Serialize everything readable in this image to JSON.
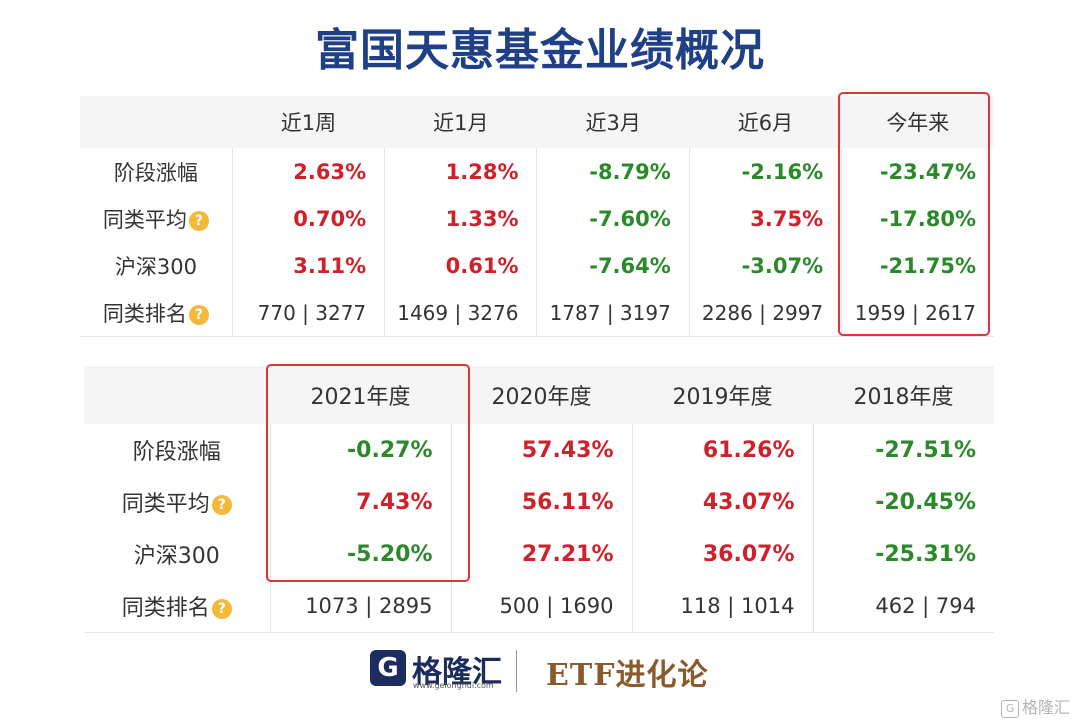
{
  "title": "富国天惠基金业绩概况",
  "table1": {
    "headers": [
      "",
      "近1周",
      "近1月",
      "近3月",
      "近6月",
      "今年来"
    ],
    "rows": [
      {
        "label": "阶段涨幅",
        "info": false,
        "values": [
          "2.63%",
          "1.28%",
          "-8.79%",
          "-2.16%",
          "-23.47%"
        ]
      },
      {
        "label": "同类平均",
        "info": true,
        "values": [
          "0.70%",
          "1.33%",
          "-7.60%",
          "3.75%",
          "-17.80%"
        ]
      },
      {
        "label": "沪深300",
        "info": false,
        "values": [
          "3.11%",
          "0.61%",
          "-7.64%",
          "-3.07%",
          "-21.75%"
        ]
      },
      {
        "label": "同类排名",
        "info": true,
        "values": [
          "770 | 3277",
          "1469 | 3276",
          "1787 | 3197",
          "2286 | 2997",
          "1959 | 2617"
        ]
      }
    ],
    "highlighted_column": "今年来"
  },
  "table2": {
    "headers": [
      "",
      "2021年度",
      "2020年度",
      "2019年度",
      "2018年度"
    ],
    "rows": [
      {
        "label": "阶段涨幅",
        "info": false,
        "values": [
          "-0.27%",
          "57.43%",
          "61.26%",
          "-27.51%"
        ]
      },
      {
        "label": "同类平均",
        "info": true,
        "values": [
          "7.43%",
          "56.11%",
          "43.07%",
          "-20.45%"
        ]
      },
      {
        "label": "沪深300",
        "info": false,
        "values": [
          "-5.20%",
          "27.21%",
          "36.07%",
          "-25.31%"
        ]
      },
      {
        "label": "同类排名",
        "info": true,
        "values": [
          "1073 | 2895",
          "500 | 1690",
          "118 | 1014",
          "462 | 794"
        ]
      }
    ],
    "highlighted_column": "2021年度"
  },
  "colors": {
    "positive": "#d0202a",
    "negative": "#2a8a2a",
    "title": "#1f3f86",
    "highlight_box": "#e03535"
  },
  "icons": {
    "info": "info-icon",
    "logo": "gelonghui-logo"
  },
  "footer": {
    "logo_mark": "G",
    "logo_text": "格隆汇",
    "logo_url": "www.gelonghui.com",
    "partner_text": "ETF进化论"
  },
  "watermark": {
    "mark": "G",
    "text": "格隆汇"
  }
}
